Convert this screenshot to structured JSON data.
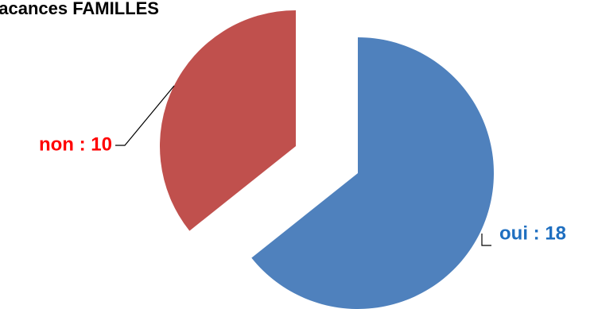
{
  "chart_data": {
    "type": "pie",
    "title": "vacances FAMILLES",
    "exploded": true,
    "legend": "none",
    "slices": [
      {
        "label": "oui : 18",
        "category": "oui",
        "value": 18,
        "color": "#4F81BD",
        "label_color": "#1F6FC0"
      },
      {
        "label": "non : 10",
        "category": "non",
        "value": 10,
        "color": "#C0504D",
        "label_color": "#FF0000"
      }
    ]
  }
}
